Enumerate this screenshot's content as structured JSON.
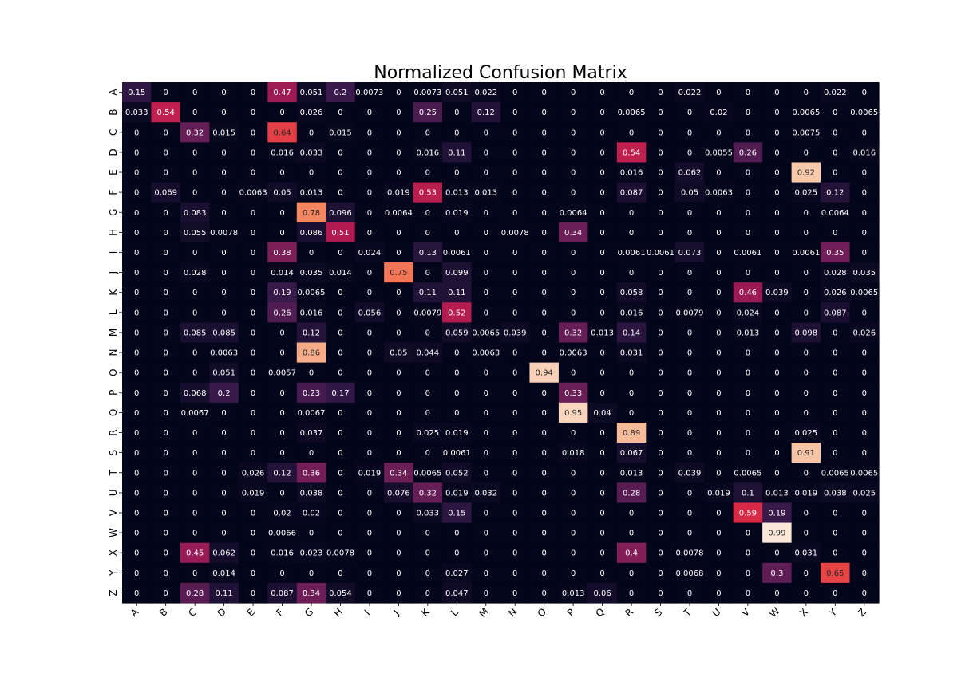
{
  "chart_data": {
    "type": "heatmap",
    "title": "Normalized Confusion Matrix",
    "xlabel": "",
    "ylabel": "",
    "x_labels": [
      "A",
      "B",
      "C",
      "D",
      "E",
      "F",
      "G",
      "H",
      "I",
      "J",
      "K",
      "L",
      "M",
      "N",
      "O",
      "P",
      "Q",
      "R",
      "S",
      "T",
      "U",
      "V",
      "W",
      "X",
      "Y",
      "Z"
    ],
    "y_labels": [
      "A",
      "B",
      "C",
      "D",
      "E",
      "F",
      "G",
      "H",
      "I",
      "J",
      "K",
      "L",
      "M",
      "N",
      "O",
      "P",
      "Q",
      "R",
      "S",
      "T",
      "U",
      "V",
      "W",
      "X",
      "Y",
      "Z"
    ],
    "colormap": "rocket",
    "value_range": [
      0,
      1
    ],
    "colorbar": false,
    "values": [
      [
        "0.15",
        "0",
        "0",
        "0",
        "0",
        "0.47",
        "0.051",
        "0.2",
        "0.0073",
        "0",
        "0.0073",
        "0.051",
        "0.022",
        "0",
        "0",
        "0",
        "0",
        "0",
        "0",
        "0.022",
        "0",
        "0",
        "0",
        "0",
        "0.022",
        "0"
      ],
      [
        "0.033",
        "0.54",
        "0",
        "0",
        "0",
        "0",
        "0.026",
        "0",
        "0",
        "0",
        "0.25",
        "0",
        "0.12",
        "0",
        "0",
        "0",
        "0",
        "0.0065",
        "0",
        "0",
        "0.02",
        "0",
        "0",
        "0.0065",
        "0",
        "0.0065"
      ],
      [
        "0",
        "0",
        "0.32",
        "0.015",
        "0",
        "0.64",
        "0",
        "0.015",
        "0",
        "0",
        "0",
        "0",
        "0",
        "0",
        "0",
        "0",
        "0",
        "0",
        "0",
        "0",
        "0",
        "0",
        "0",
        "0.0075",
        "0",
        "0"
      ],
      [
        "0",
        "0",
        "0",
        "0",
        "0",
        "0.016",
        "0.033",
        "0",
        "0",
        "0",
        "0.016",
        "0.11",
        "0",
        "0",
        "0",
        "0",
        "0",
        "0.54",
        "0",
        "0",
        "0.0055",
        "0.26",
        "0",
        "0",
        "0",
        "0.016"
      ],
      [
        "0",
        "0",
        "0",
        "0",
        "0",
        "0",
        "0",
        "0",
        "0",
        "0",
        "0",
        "0",
        "0",
        "0",
        "0",
        "0",
        "0",
        "0.016",
        "0",
        "0.062",
        "0",
        "0",
        "0",
        "0.92",
        "0",
        "0"
      ],
      [
        "0",
        "0.069",
        "0",
        "0",
        "0.0063",
        "0.05",
        "0.013",
        "0",
        "0",
        "0.019",
        "0.53",
        "0.013",
        "0.013",
        "0",
        "0",
        "0",
        "0",
        "0.087",
        "0",
        "0.05",
        "0.0063",
        "0",
        "0",
        "0.025",
        "0.12",
        "0"
      ],
      [
        "0",
        "0",
        "0.083",
        "0",
        "0",
        "0",
        "0.78",
        "0.096",
        "0",
        "0.0064",
        "0",
        "0.019",
        "0",
        "0",
        "0",
        "0.0064",
        "0",
        "0",
        "0",
        "0",
        "0",
        "0",
        "0",
        "0",
        "0.0064",
        "0"
      ],
      [
        "0",
        "0",
        "0.055",
        "0.0078",
        "0",
        "0",
        "0.086",
        "0.51",
        "0",
        "0",
        "0",
        "0",
        "0",
        "0.0078",
        "0",
        "0.34",
        "0",
        "0",
        "0",
        "0",
        "0",
        "0",
        "0",
        "0",
        "0",
        "0"
      ],
      [
        "0",
        "0",
        "0",
        "0",
        "0",
        "0.38",
        "0",
        "0",
        "0.024",
        "0",
        "0.13",
        "0.0061",
        "0",
        "0",
        "0",
        "0",
        "0",
        "0.0061",
        "0.0061",
        "0.073",
        "0",
        "0.0061",
        "0",
        "0.0061",
        "0.35",
        "0"
      ],
      [
        "0",
        "0",
        "0.028",
        "0",
        "0",
        "0.014",
        "0.035",
        "0.014",
        "0",
        "0.75",
        "0",
        "0.099",
        "0",
        "0",
        "0",
        "0",
        "0",
        "0",
        "0",
        "0",
        "0",
        "0",
        "0",
        "0",
        "0.028",
        "0.035"
      ],
      [
        "0",
        "0",
        "0",
        "0",
        "0",
        "0.19",
        "0.0065",
        "0",
        "0",
        "0",
        "0.11",
        "0.11",
        "0",
        "0",
        "0",
        "0",
        "0",
        "0.058",
        "0",
        "0",
        "0",
        "0.46",
        "0.039",
        "0",
        "0.026",
        "0.0065"
      ],
      [
        "0",
        "0",
        "0",
        "0",
        "0",
        "0.26",
        "0.016",
        "0",
        "0.056",
        "0",
        "0.0079",
        "0.52",
        "0",
        "0",
        "0",
        "0",
        "0",
        "0.016",
        "0",
        "0.0079",
        "0",
        "0.024",
        "0",
        "0",
        "0.087",
        "0"
      ],
      [
        "0",
        "0",
        "0.085",
        "0.085",
        "0",
        "0",
        "0.12",
        "0",
        "0",
        "0",
        "0",
        "0.059",
        "0.0065",
        "0.039",
        "0",
        "0.32",
        "0.013",
        "0.14",
        "0",
        "0",
        "0",
        "0.013",
        "0",
        "0.098",
        "0",
        "0.026"
      ],
      [
        "0",
        "0",
        "0",
        "0.0063",
        "0",
        "0",
        "0.86",
        "0",
        "0",
        "0.05",
        "0.044",
        "0",
        "0.0063",
        "0",
        "0",
        "0.0063",
        "0",
        "0.031",
        "0",
        "0",
        "0",
        "0",
        "0",
        "0",
        "0",
        "0"
      ],
      [
        "0",
        "0",
        "0",
        "0.051",
        "0",
        "0.0057",
        "0",
        "0",
        "0",
        "0",
        "0",
        "0",
        "0",
        "0",
        "0.94",
        "0",
        "0",
        "0",
        "0",
        "0",
        "0",
        "0",
        "0",
        "0",
        "0",
        "0"
      ],
      [
        "0",
        "0",
        "0.068",
        "0.2",
        "0",
        "0",
        "0.23",
        "0.17",
        "0",
        "0",
        "0",
        "0",
        "0",
        "0",
        "0",
        "0.33",
        "0",
        "0",
        "0",
        "0",
        "0",
        "0",
        "0",
        "0",
        "0",
        "0"
      ],
      [
        "0",
        "0",
        "0.0067",
        "0",
        "0",
        "0",
        "0.0067",
        "0",
        "0",
        "0",
        "0",
        "0",
        "0",
        "0",
        "0",
        "0.95",
        "0.04",
        "0",
        "0",
        "0",
        "0",
        "0",
        "0",
        "0",
        "0",
        "0"
      ],
      [
        "0",
        "0",
        "0",
        "0",
        "0",
        "0",
        "0.037",
        "0",
        "0",
        "0",
        "0.025",
        "0.019",
        "0",
        "0",
        "0",
        "0",
        "0",
        "0.89",
        "0",
        "0",
        "0",
        "0",
        "0",
        "0.025",
        "0",
        "0"
      ],
      [
        "0",
        "0",
        "0",
        "0",
        "0",
        "0",
        "0",
        "0",
        "0",
        "0",
        "0",
        "0.0061",
        "0",
        "0",
        "0",
        "0.018",
        "0",
        "0.067",
        "0",
        "0",
        "0",
        "0",
        "0",
        "0.91",
        "0",
        "0"
      ],
      [
        "0",
        "0",
        "0",
        "0",
        "0.026",
        "0.12",
        "0.36",
        "0",
        "0.019",
        "0.34",
        "0.0065",
        "0.052",
        "0",
        "0",
        "0",
        "0",
        "0",
        "0.013",
        "0",
        "0.039",
        "0",
        "0.0065",
        "0",
        "0",
        "0.0065",
        "0.0065"
      ],
      [
        "0",
        "0",
        "0",
        "0",
        "0.019",
        "0",
        "0.038",
        "0",
        "0",
        "0.076",
        "0.32",
        "0.019",
        "0.032",
        "0",
        "0",
        "0",
        "0",
        "0.28",
        "0",
        "0",
        "0.019",
        "0.1",
        "0.013",
        "0.019",
        "0.038",
        "0.025"
      ],
      [
        "0",
        "0",
        "0",
        "0",
        "0",
        "0.02",
        "0.02",
        "0",
        "0",
        "0",
        "0.033",
        "0.15",
        "0",
        "0",
        "0",
        "0",
        "0",
        "0",
        "0",
        "0",
        "0",
        "0.59",
        "0.19",
        "0",
        "0",
        "0"
      ],
      [
        "0",
        "0",
        "0",
        "0",
        "0",
        "0.0066",
        "0",
        "0",
        "0",
        "0",
        "0",
        "0",
        "0",
        "0",
        "0",
        "0",
        "0",
        "0",
        "0",
        "0",
        "0",
        "0",
        "0.99",
        "0",
        "0",
        "0"
      ],
      [
        "0",
        "0",
        "0.45",
        "0.062",
        "0",
        "0.016",
        "0.023",
        "0.0078",
        "0",
        "0",
        "0",
        "0",
        "0",
        "0",
        "0",
        "0",
        "0",
        "0.4",
        "0",
        "0.0078",
        "0",
        "0",
        "0",
        "0.031",
        "0",
        "0"
      ],
      [
        "0",
        "0",
        "0",
        "0.014",
        "0",
        "0",
        "0",
        "0",
        "0",
        "0",
        "0",
        "0.027",
        "0",
        "0",
        "0",
        "0",
        "0",
        "0",
        "0",
        "0.0068",
        "0",
        "0",
        "0.3",
        "0",
        "0.65",
        "0"
      ],
      [
        "0",
        "0",
        "0.28",
        "0.11",
        "0",
        "0.087",
        "0.34",
        "0.054",
        "0",
        "0",
        "0",
        "0.047",
        "0",
        "0",
        "0",
        "0.013",
        "0.06",
        "0",
        "0",
        "0",
        "0",
        "0",
        "0",
        "0",
        "0",
        "0"
      ]
    ]
  }
}
